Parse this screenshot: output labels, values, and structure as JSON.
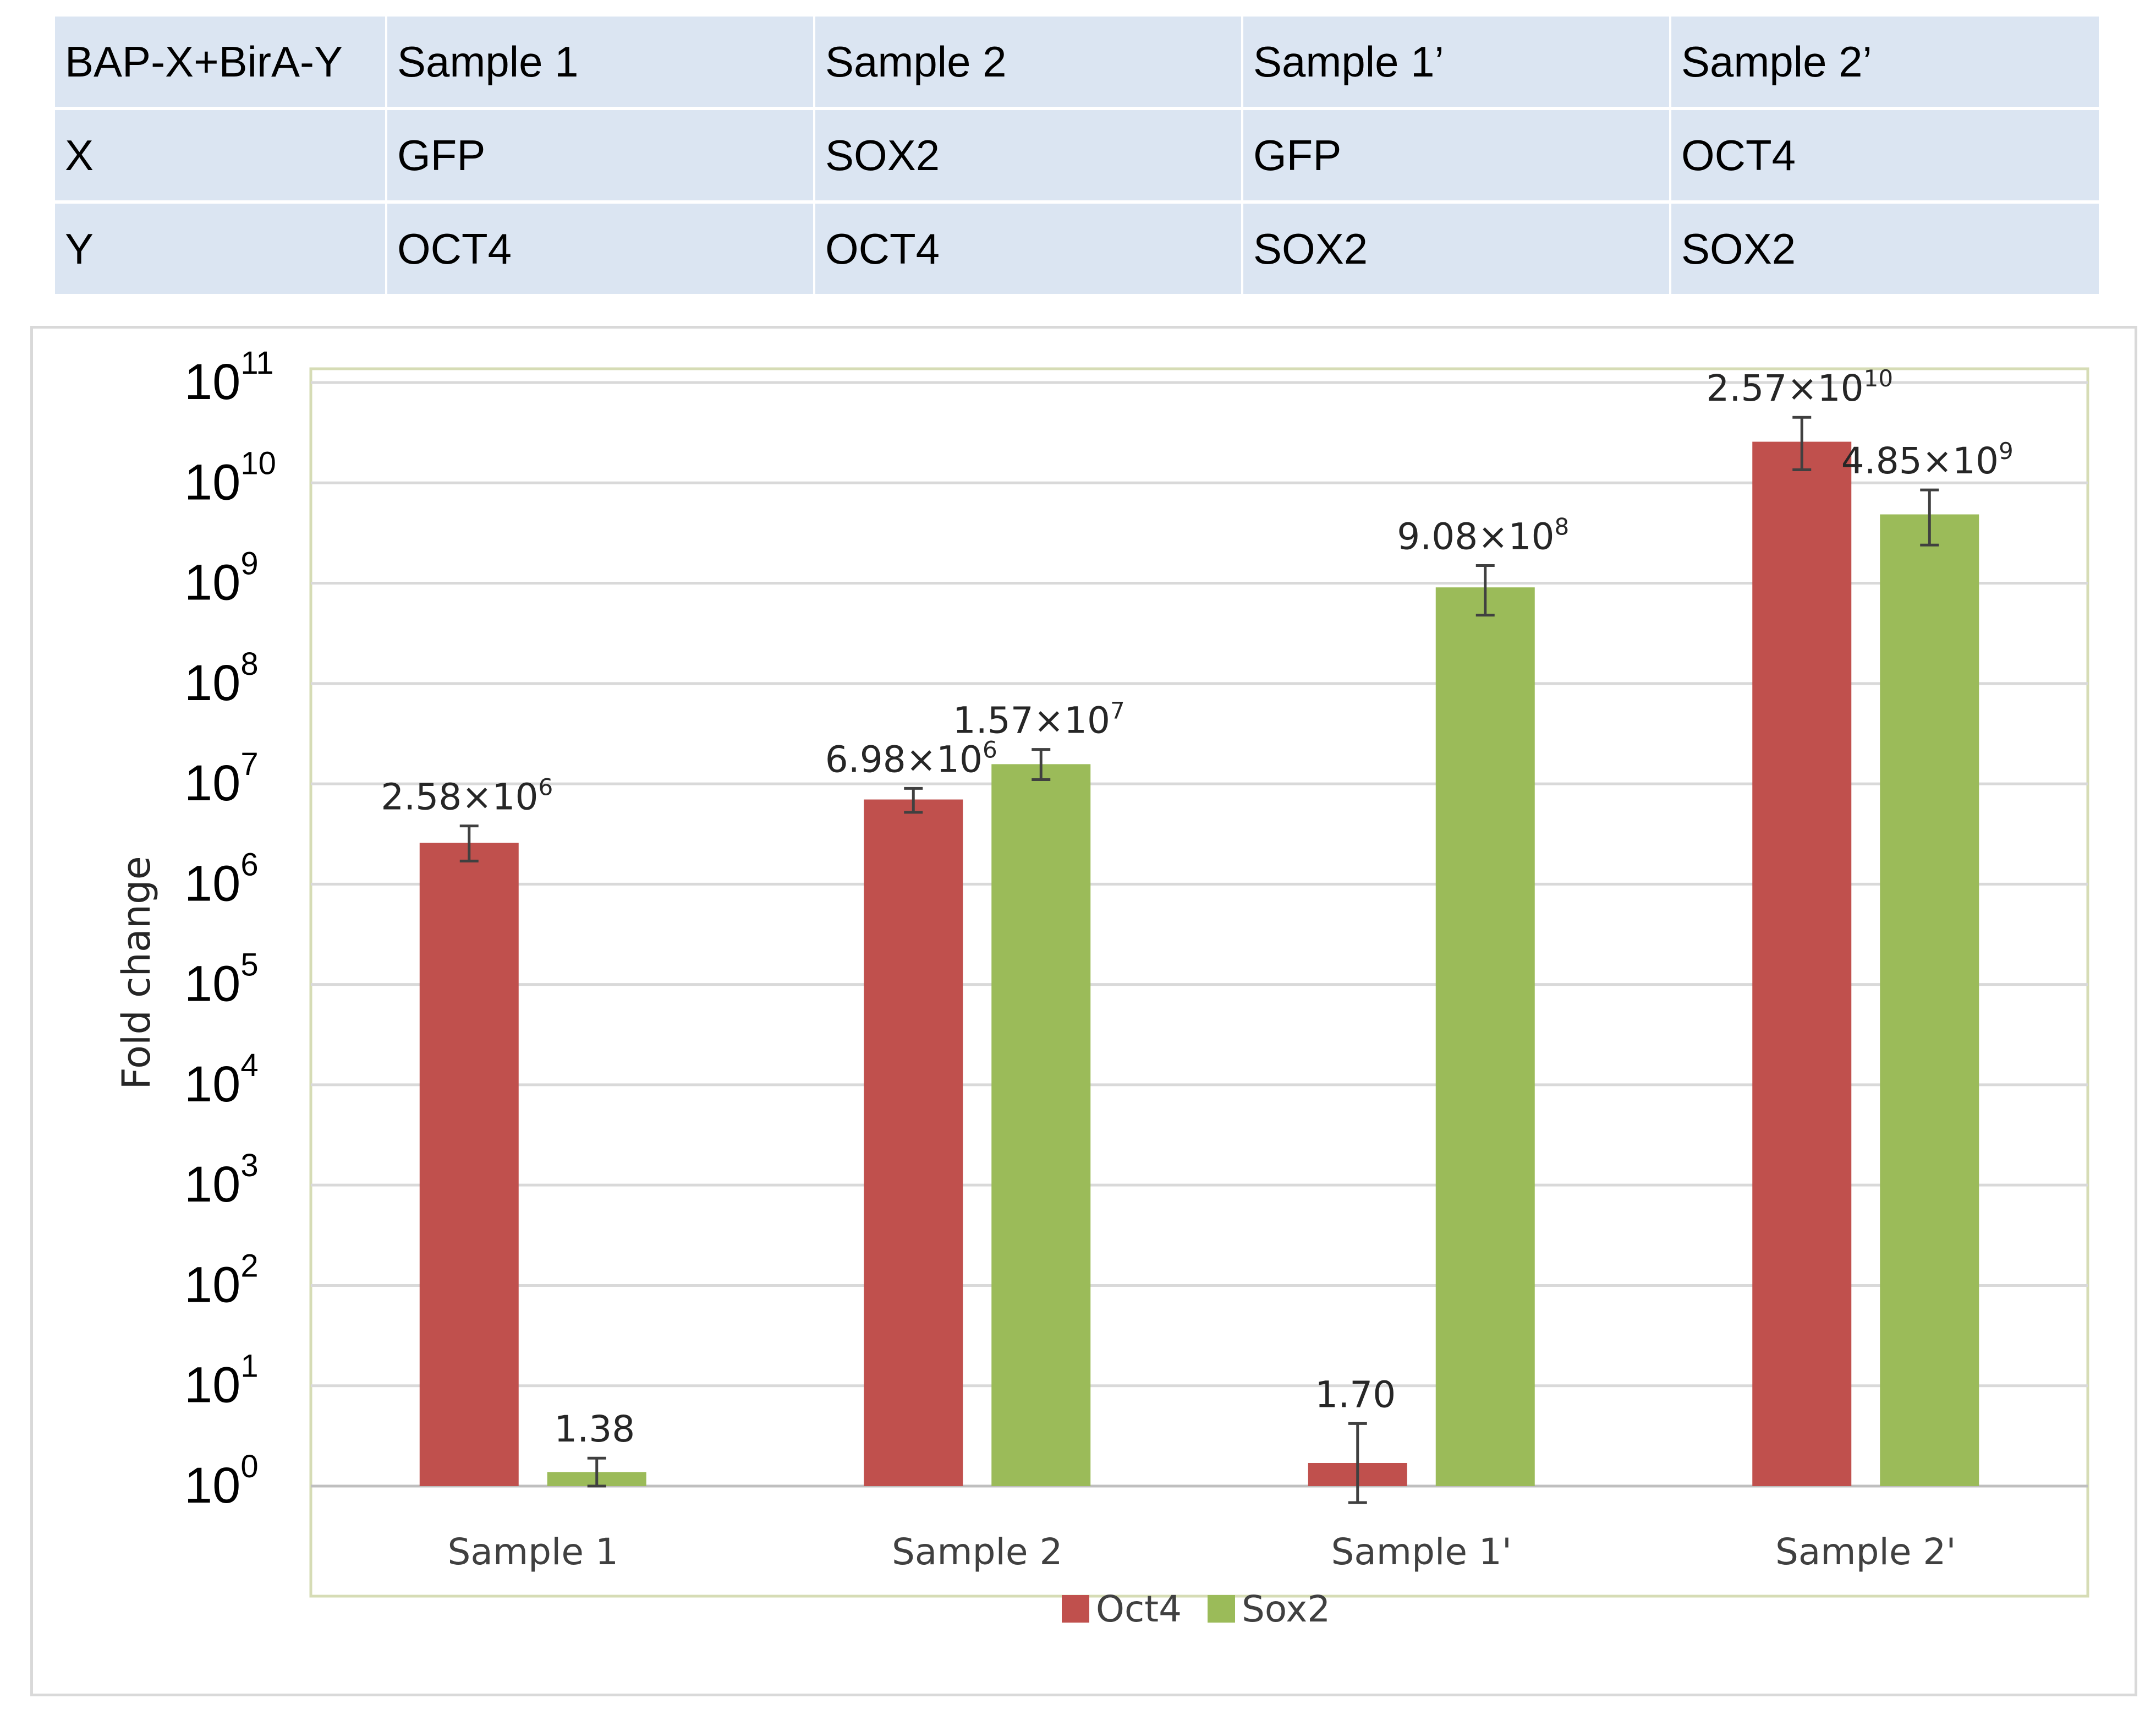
{
  "table": {
    "header": [
      "BAP-X+BirA-Y",
      "Sample 1",
      "Sample 2",
      "Sample 1’",
      "Sample 2’"
    ],
    "rows": [
      [
        "X",
        "GFP",
        "SOX2",
        "GFP",
        "OCT4"
      ],
      [
        "Y",
        "OCT4",
        "OCT4",
        "SOX2",
        "SOX2"
      ]
    ]
  },
  "chart_data": {
    "type": "bar",
    "scale": "log10",
    "categories": [
      "Sample 1",
      "Sample 2",
      "Sample 1'",
      "Sample 2'"
    ],
    "series": [
      {
        "name": "Oct4",
        "color": "#c0504d",
        "values": [
          2580000,
          6980000,
          1.7,
          25700000000
        ],
        "error_low": [
          1700000,
          5200000,
          0.55,
          13500000000
        ],
        "error_high": [
          3800000,
          9000000,
          4.2,
          45000000000
        ],
        "labels": [
          {
            "base": "2.58×10",
            "exp": "6"
          },
          {
            "base": "6.98×10",
            "exp": "6"
          },
          {
            "base": "1.70",
            "exp": ""
          },
          {
            "base": "2.57×10",
            "exp": "10"
          }
        ]
      },
      {
        "name": "Sox2",
        "color": "#9bbb59",
        "values": [
          1.38,
          15700000,
          908000000,
          4850000000
        ],
        "error_low": [
          1.0,
          11000000,
          480000000,
          2400000000
        ],
        "error_high": [
          1.9,
          22000000,
          1500000000,
          8500000000
        ],
        "labels": [
          {
            "base": "1.38",
            "exp": ""
          },
          {
            "base": "1.57×10",
            "exp": "7"
          },
          {
            "base": "9.08×10",
            "exp": "8"
          },
          {
            "base": "4.85×10",
            "exp": "9"
          }
        ]
      }
    ],
    "ylabel": "Fold change",
    "xlabel": "",
    "ylim": [
      1,
      100000000000
    ],
    "y_ticks": [
      {
        "base": "10",
        "exp": "0"
      },
      {
        "base": "10",
        "exp": "1"
      },
      {
        "base": "10",
        "exp": "2"
      },
      {
        "base": "10",
        "exp": "3"
      },
      {
        "base": "10",
        "exp": "4"
      },
      {
        "base": "10",
        "exp": "5"
      },
      {
        "base": "10",
        "exp": "6"
      },
      {
        "base": "10",
        "exp": "7"
      },
      {
        "base": "10",
        "exp": "8"
      },
      {
        "base": "10",
        "exp": "9"
      },
      {
        "base": "10",
        "exp": "10"
      },
      {
        "base": "10",
        "exp": "11"
      }
    ],
    "grid": true,
    "legend": "bottom-center"
  },
  "style": {
    "grid_color": "#d9d9d9",
    "plot_border_color": "#d6dcb5",
    "error_bar_color": "#404040"
  }
}
